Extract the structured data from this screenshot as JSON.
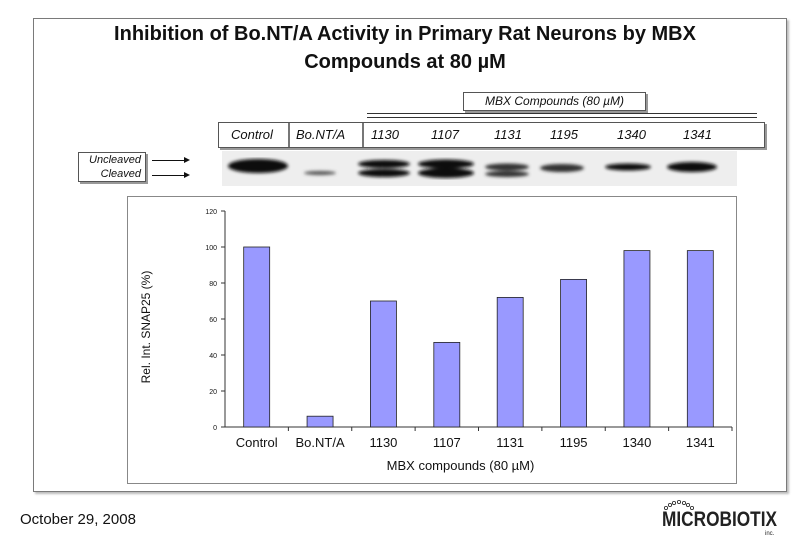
{
  "title_line1": "Inhibition of Bo.NT/A Activity in Primary Rat Neurons by MBX",
  "title_line2": "Compounds at 80 µM",
  "mbx_label": "MBX Compounds (80 µM)",
  "blot": {
    "uncleaved_label": "Uncleaved",
    "cleaved_label": "Cleaved",
    "lanes": [
      "Control",
      "Bo.NT/A",
      "1130",
      "1107",
      "1131",
      "1195",
      "1340",
      "1341"
    ]
  },
  "footer": {
    "date": "October 29, 2008",
    "logo_text": "MICROBIOTIX",
    "logo_sub": "inc."
  },
  "chart_data": {
    "type": "bar",
    "categories": [
      "Control",
      "Bo.NT/A",
      "1130",
      "1107",
      "1131",
      "1195",
      "1340",
      "1341"
    ],
    "values": [
      100,
      6,
      70,
      47,
      72,
      82,
      98,
      98
    ],
    "xlabel": "MBX compounds (80 µM)",
    "ylabel": "Rel. Int. SNAP25 (%)",
    "ylim": [
      0,
      120
    ],
    "yticks": [
      0,
      20,
      40,
      60,
      80,
      100,
      120
    ],
    "grid": false,
    "bar_color": "#9999ff"
  }
}
